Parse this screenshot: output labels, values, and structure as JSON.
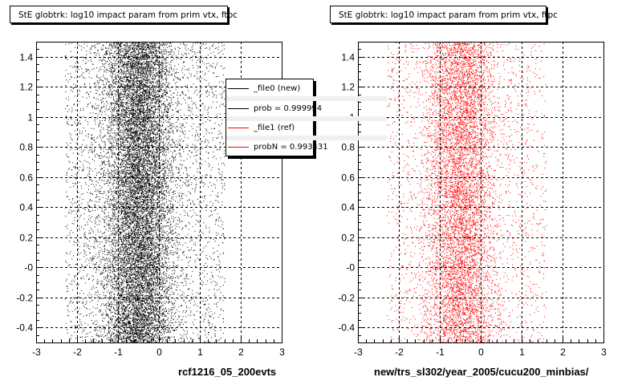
{
  "chart_data": [
    {
      "type": "scatter",
      "title": "StE globtrk: log10 impact param from prim vtx, ftpc",
      "xlim": [
        -3,
        3
      ],
      "ylim": [
        -0.5,
        1.5
      ],
      "x_ticks": [
        "-3",
        "-2",
        "-1",
        "0",
        "1",
        "2",
        "3"
      ],
      "y_ticks": [
        "-0.4",
        "-0.2",
        "-0",
        "0.2",
        "0.4",
        "0.6",
        "0.8",
        "1",
        "1.2",
        "1.4"
      ],
      "grid": true,
      "marker_color": "#000000",
      "x_distribution": {
        "center": -0.5,
        "core_range": [
          -1.1,
          1.0
        ],
        "full_range": [
          -2.3,
          1.6
        ]
      },
      "y_distribution": "uniform",
      "points_shown": 15000,
      "xlabel": "rcf1216_05_200evts",
      "legend_position": "top-right",
      "legend": [
        {
          "label": "_file0 (new)",
          "color": "#000000"
        },
        {
          "label": "prob = 0.999994",
          "color": "#000000"
        },
        {
          "label": "_file1 (ref)",
          "color": "#ff0000"
        },
        {
          "label": "probN = 0.993431",
          "color": "#ff0000"
        }
      ]
    },
    {
      "type": "scatter",
      "title": "StE globtrk: log10 impact param from prim vtx, ftpc",
      "xlim": [
        -3,
        3
      ],
      "ylim": [
        -0.5,
        1.5
      ],
      "x_ticks": [
        "-3",
        "-2",
        "-1",
        "0",
        "1",
        "2",
        "3"
      ],
      "y_ticks": [
        "-0.4",
        "-0.2",
        "-0",
        "0.2",
        "0.4",
        "0.6",
        "0.8",
        "1",
        "1.2",
        "1.4"
      ],
      "grid": true,
      "marker_color": "#ff0000",
      "x_distribution": {
        "center": -0.5,
        "core_range": [
          -1.1,
          1.0
        ],
        "full_range": [
          -2.3,
          1.6
        ]
      },
      "y_distribution": "uniform",
      "points_shown": 8500,
      "xlabel": "new/trs_sl302/year_2005/cucu200_minbias/"
    }
  ]
}
